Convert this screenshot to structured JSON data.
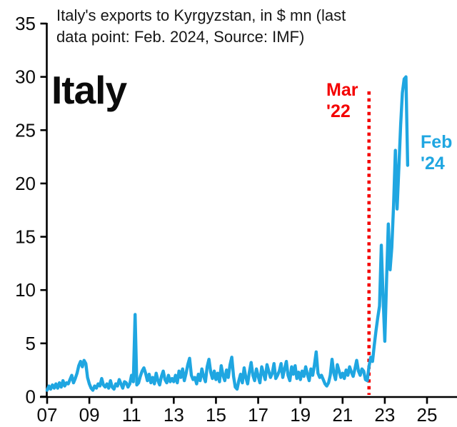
{
  "title_line1": "Italy's exports to Kyrgyzstan, in $ mn (last",
  "title_line2": "data point: Feb. 2024, Source: IMF)",
  "country_label": "Italy",
  "annotations": {
    "event_label_line1": "Mar",
    "event_label_line2": "'22",
    "event_month": "2022-03",
    "endpoint_label_line1": "Feb",
    "endpoint_label_line2": "'24",
    "endpoint_month": "2024-02"
  },
  "colors": {
    "line": "#1fa6e1",
    "event": "#f40000",
    "axis": "#000000",
    "background": "#ffffff"
  },
  "chart_data": {
    "type": "line",
    "title": "Italy's exports to Kyrgyzstan, in $ mn (last data point: Feb. 2024, Source: IMF)",
    "xlabel": "",
    "ylabel": "",
    "frequency": "monthly",
    "start": "2007-01",
    "end": "2024-02",
    "x_tick_years": [
      2007,
      2009,
      2011,
      2013,
      2015,
      2017,
      2019,
      2021,
      2023,
      2025
    ],
    "x_tick_labels": [
      "07",
      "09",
      "11",
      "13",
      "15",
      "17",
      "19",
      "21",
      "23",
      "25"
    ],
    "y_ticks": [
      0,
      5,
      10,
      15,
      20,
      25,
      30,
      35
    ],
    "ylim": [
      0,
      35
    ],
    "xlim": [
      2006.65,
      2026.4
    ],
    "grid": false,
    "legend": "none",
    "series": [
      {
        "name": "Italy exports to Kyrgyzstan ($ mn)",
        "values": [
          0.6,
          1.0,
          0.7,
          1.1,
          0.8,
          1.2,
          0.8,
          1.3,
          0.9,
          1.5,
          1.0,
          1.3,
          1.2,
          1.6,
          2.0,
          1.3,
          1.7,
          2.2,
          2.9,
          3.3,
          2.8,
          3.4,
          3.1,
          1.8,
          1.2,
          0.8,
          0.6,
          1.0,
          0.8,
          1.2,
          1.0,
          1.7,
          1.1,
          0.9,
          1.2,
          0.8,
          1.5,
          0.9,
          0.7,
          1.2,
          1.0,
          1.6,
          1.2,
          0.8,
          1.4,
          1.3,
          0.9,
          1.2,
          2.0,
          1.4,
          7.7,
          1.1,
          1.3,
          1.9,
          2.4,
          2.7,
          2.2,
          1.5,
          2.1,
          1.3,
          1.8,
          1.2,
          2.2,
          1.5,
          1.1,
          1.9,
          2.4,
          1.6,
          1.3,
          2.0,
          1.4,
          1.7,
          1.4,
          2.0,
          1.3,
          2.4,
          1.8,
          2.6,
          1.5,
          2.2,
          3.0,
          3.6,
          2.0,
          1.6,
          1.8,
          1.2,
          2.1,
          1.5,
          2.6,
          1.9,
          1.4,
          2.8,
          3.5,
          2.3,
          1.7,
          2.4,
          1.6,
          2.2,
          1.4,
          2.9,
          2.0,
          1.5,
          2.5,
          1.8,
          3.0,
          3.7,
          1.9,
          0.9,
          0.7,
          1.5,
          2.1,
          1.3,
          2.7,
          1.8,
          1.2,
          2.3,
          3.2,
          2.0,
          1.5,
          2.6,
          1.9,
          1.3,
          2.8,
          2.2,
          1.6,
          3.0,
          2.4,
          1.8,
          2.2,
          3.1,
          1.7,
          2.0,
          2.4,
          3.1,
          1.8,
          2.6,
          3.3,
          2.0,
          1.5,
          2.8,
          2.1,
          2.9,
          1.7,
          2.3,
          1.6,
          2.4,
          1.9,
          2.8,
          2.1,
          1.5,
          2.6,
          2.0,
          3.0,
          4.2,
          2.2,
          1.8,
          2.0,
          1.6,
          1.2,
          1.0,
          1.3,
          2.0,
          3.5,
          2.2,
          1.6,
          3.0,
          2.4,
          1.8,
          2.2,
          1.7,
          2.5,
          2.0,
          2.8,
          2.3,
          1.9,
          2.6,
          3.4,
          2.4,
          2.0,
          2.6,
          2.4,
          1.6,
          1.5,
          2.8,
          3.7,
          3.3,
          4.8,
          6.2,
          7.4,
          8.5,
          14.2,
          9.5,
          5.2,
          11.0,
          16.2,
          11.9,
          14.0,
          18.0,
          23.1,
          17.6,
          21.5,
          25.5,
          28.5,
          29.8,
          30.0,
          21.7
        ]
      }
    ],
    "event_line": {
      "month": "2022-03",
      "label": "Mar '22",
      "style": "dotted",
      "color": "#f40000"
    },
    "endpoint_value": 21.7,
    "peak_value": 30.0
  }
}
